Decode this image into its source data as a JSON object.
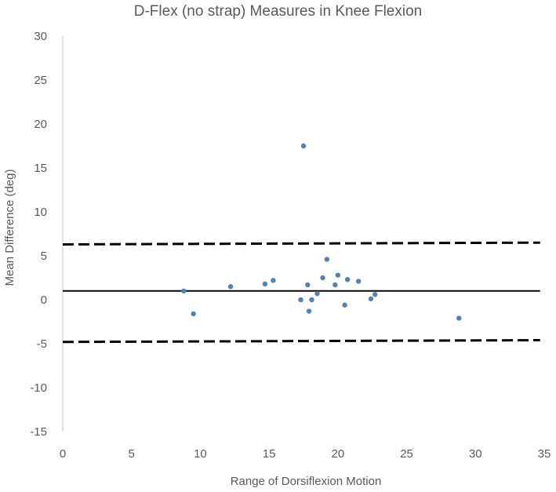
{
  "chart_data": {
    "type": "scatter",
    "title": "D-Flex (no strap) Measures in Knee Flexion",
    "xlabel": "Range of Dorsiflexion Motion",
    "ylabel": "Mean Difference (deg)",
    "xlim": [
      0,
      35
    ],
    "ylim": [
      -15,
      30
    ],
    "x_ticks": [
      0,
      5,
      10,
      15,
      20,
      25,
      30,
      35
    ],
    "y_ticks": [
      -15,
      -10,
      -5,
      0,
      5,
      10,
      15,
      20,
      25,
      30
    ],
    "grid": false,
    "point_color": "#4F81BD",
    "line_color": "#000000",
    "points": [
      {
        "x": 8.8,
        "y": 1.0
      },
      {
        "x": 9.5,
        "y": -1.6
      },
      {
        "x": 12.2,
        "y": 1.5
      },
      {
        "x": 14.7,
        "y": 1.8
      },
      {
        "x": 15.3,
        "y": 2.2
      },
      {
        "x": 17.3,
        "y": 0.0
      },
      {
        "x": 17.5,
        "y": 17.5
      },
      {
        "x": 17.8,
        "y": 1.7
      },
      {
        "x": 17.9,
        "y": -1.3
      },
      {
        "x": 18.1,
        "y": 0.0
      },
      {
        "x": 18.5,
        "y": 0.7
      },
      {
        "x": 18.9,
        "y": 2.5
      },
      {
        "x": 19.2,
        "y": 4.6
      },
      {
        "x": 19.8,
        "y": 1.7
      },
      {
        "x": 20.0,
        "y": 2.8
      },
      {
        "x": 20.5,
        "y": -0.6
      },
      {
        "x": 20.7,
        "y": 2.3
      },
      {
        "x": 21.5,
        "y": 2.1
      },
      {
        "x": 22.4,
        "y": 0.1
      },
      {
        "x": 22.7,
        "y": 0.6
      },
      {
        "x": 28.8,
        "y": -2.1
      }
    ],
    "reference_lines": [
      {
        "name": "mean",
        "style": "solid",
        "x": [
          0,
          34.7
        ],
        "y": [
          1.0,
          1.0
        ]
      },
      {
        "name": "upper-limit",
        "style": "dashed",
        "x": [
          0,
          34.7
        ],
        "y": [
          6.3,
          6.5
        ]
      },
      {
        "name": "lower-limit",
        "style": "dashed",
        "x": [
          0,
          34.7
        ],
        "y": [
          -4.8,
          -4.6
        ]
      }
    ]
  }
}
